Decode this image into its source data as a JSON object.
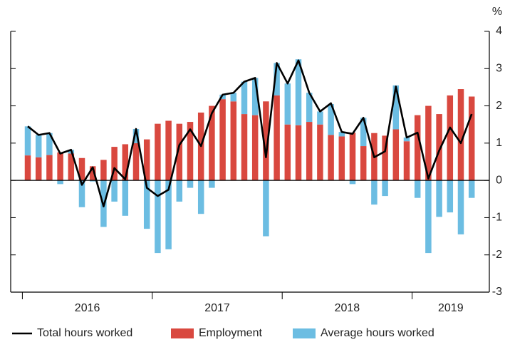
{
  "chart_data": {
    "type": "bar",
    "unit_label": "%",
    "categories": [
      null,
      null,
      null,
      null,
      null,
      null,
      null,
      null,
      null,
      null,
      null,
      null,
      null,
      null,
      null,
      null,
      null,
      null,
      null,
      null,
      null,
      null,
      null,
      null,
      null,
      null,
      null,
      null,
      null,
      null,
      null,
      null,
      null,
      null,
      null,
      null,
      null,
      null,
      null,
      null,
      null,
      null
    ],
    "year_labels": [
      "2016",
      "2017",
      "2018",
      "2019"
    ],
    "ylim": [
      -3,
      4
    ],
    "yticks": [
      -3,
      -2,
      -1,
      0,
      1,
      2,
      3,
      4
    ],
    "series": [
      {
        "name": "Employment",
        "color": "#d9483f",
        "stack": true,
        "values": [
          0.67,
          0.62,
          0.68,
          0.75,
          0.72,
          0.6,
          0.38,
          0.55,
          0.9,
          0.97,
          1.0,
          1.1,
          1.52,
          1.6,
          1.52,
          1.57,
          1.82,
          2.0,
          2.18,
          2.12,
          1.78,
          1.75,
          2.12,
          2.28,
          1.5,
          1.48,
          1.57,
          1.5,
          1.22,
          1.18,
          1.28,
          0.92,
          1.27,
          1.2,
          1.37,
          1.05,
          1.75,
          2.0,
          1.78,
          2.28,
          2.45,
          2.25
        ]
      },
      {
        "name": "Average hours worked",
        "color": "#6cbde2",
        "stack": true,
        "values": [
          0.78,
          0.6,
          0.59,
          -0.1,
          0.1,
          -0.72,
          -0.03,
          -1.25,
          -0.57,
          -0.95,
          0.38,
          -1.3,
          -1.95,
          -1.85,
          -0.57,
          -0.2,
          -0.9,
          -0.2,
          0.12,
          0.23,
          0.87,
          1.0,
          -1.5,
          0.87,
          1.1,
          1.77,
          0.78,
          0.35,
          0.83,
          0.12,
          -0.1,
          0.76,
          -0.65,
          -0.42,
          1.18,
          0.1,
          -0.47,
          -1.95,
          -0.98,
          -0.86,
          -1.45,
          -0.47
        ]
      },
      {
        "name": "Total hours worked",
        "color": "#000000",
        "kind": "line",
        "values": [
          1.45,
          1.22,
          1.27,
          0.72,
          0.82,
          -0.12,
          0.35,
          -0.7,
          0.33,
          0.03,
          1.38,
          -0.2,
          -0.42,
          -0.25,
          0.95,
          1.37,
          0.92,
          1.8,
          2.3,
          2.35,
          2.65,
          2.75,
          0.62,
          3.15,
          2.6,
          3.22,
          2.35,
          1.85,
          2.07,
          1.3,
          1.25,
          1.68,
          0.62,
          0.78,
          2.52,
          1.15,
          1.28,
          0.05,
          0.8,
          1.42,
          1.0,
          1.78
        ]
      }
    ]
  }
}
